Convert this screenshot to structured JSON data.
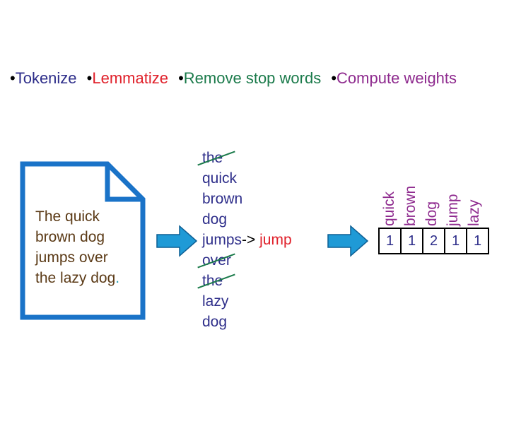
{
  "steps": [
    {
      "label": "Tokenize",
      "color": "#2e2e8a"
    },
    {
      "label": "Lemmatize",
      "color": "#e0202a"
    },
    {
      "label": "Remove stop words",
      "color": "#1a7a4a"
    },
    {
      "label": "Compute weights",
      "color": "#8e2a8e"
    }
  ],
  "bullet": "•",
  "document": {
    "lines": [
      "The quick",
      "brown dog",
      "jumps over",
      "the lazy dog"
    ],
    "period": ".",
    "icon": "document-icon",
    "border_color": "#1a73c8"
  },
  "tokens": [
    {
      "text": "the",
      "removed": true
    },
    {
      "text": "quick",
      "removed": false
    },
    {
      "text": "brown",
      "removed": false
    },
    {
      "text": "dog",
      "removed": false
    },
    {
      "text": "jumps",
      "removed": false,
      "arrow": "->",
      "lemma": "jump"
    },
    {
      "text": "over",
      "removed": true
    },
    {
      "text": "the",
      "removed": true
    },
    {
      "text": "lazy",
      "removed": false
    },
    {
      "text": "dog",
      "removed": false
    }
  ],
  "vector": {
    "labels": [
      "quick",
      "brown",
      "dog",
      "jump",
      "lazy"
    ],
    "values": [
      "1",
      "1",
      "2",
      "1",
      "1"
    ]
  },
  "arrow_color": "#1f9ad6"
}
